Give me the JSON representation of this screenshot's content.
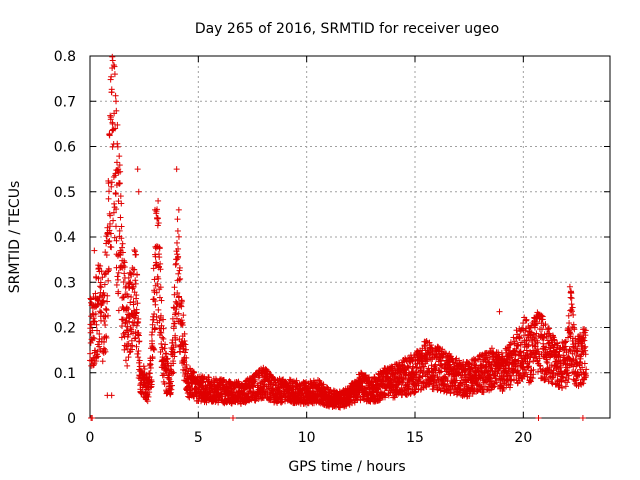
{
  "chart_data": {
    "type": "scatter",
    "title": "Day 265 of 2016, SRMTID for receiver ugeo",
    "xlabel": "GPS time / hours",
    "ylabel": "SRMTID / TECUs",
    "xlim": [
      0,
      24
    ],
    "ylim": [
      0,
      0.8
    ],
    "xticks": [
      "0",
      "5",
      "10",
      "15",
      "20"
    ],
    "yticks": [
      "0",
      "0.1",
      "0.2",
      "0.3",
      "0.4",
      "0.5",
      "0.6",
      "0.7",
      "0.8"
    ],
    "grid": true,
    "marker": "+",
    "series_color": "#e00000",
    "envelope": [
      [
        0.0,
        0.18
      ],
      [
        0.2,
        0.2
      ],
      [
        0.4,
        0.24
      ],
      [
        0.6,
        0.22
      ],
      [
        0.8,
        0.3
      ],
      [
        1.0,
        0.62
      ],
      [
        1.1,
        0.75
      ],
      [
        1.2,
        0.5
      ],
      [
        1.35,
        0.42
      ],
      [
        1.5,
        0.28
      ],
      [
        1.7,
        0.2
      ],
      [
        1.9,
        0.24
      ],
      [
        2.1,
        0.3
      ],
      [
        2.3,
        0.1
      ],
      [
        2.5,
        0.08
      ],
      [
        2.7,
        0.06
      ],
      [
        2.85,
        0.12
      ],
      [
        3.0,
        0.3
      ],
      [
        3.15,
        0.36
      ],
      [
        3.3,
        0.18
      ],
      [
        3.5,
        0.1
      ],
      [
        3.7,
        0.08
      ],
      [
        3.9,
        0.2
      ],
      [
        4.05,
        0.34
      ],
      [
        4.2,
        0.2
      ],
      [
        4.5,
        0.08
      ],
      [
        5.0,
        0.065
      ],
      [
        6.0,
        0.06
      ],
      [
        7.0,
        0.055
      ],
      [
        7.5,
        0.065
      ],
      [
        8.0,
        0.08
      ],
      [
        8.5,
        0.06
      ],
      [
        9.0,
        0.06
      ],
      [
        10.0,
        0.055
      ],
      [
        10.5,
        0.06
      ],
      [
        11.0,
        0.045
      ],
      [
        11.5,
        0.04
      ],
      [
        12.0,
        0.05
      ],
      [
        12.5,
        0.07
      ],
      [
        13.0,
        0.06
      ],
      [
        13.5,
        0.075
      ],
      [
        14.0,
        0.08
      ],
      [
        14.5,
        0.09
      ],
      [
        15.0,
        0.1
      ],
      [
        15.5,
        0.12
      ],
      [
        16.0,
        0.11
      ],
      [
        16.5,
        0.1
      ],
      [
        17.0,
        0.09
      ],
      [
        17.5,
        0.085
      ],
      [
        18.0,
        0.1
      ],
      [
        18.5,
        0.11
      ],
      [
        19.0,
        0.1
      ],
      [
        19.5,
        0.12
      ],
      [
        20.0,
        0.16
      ],
      [
        20.3,
        0.14
      ],
      [
        20.6,
        0.17
      ],
      [
        21.0,
        0.15
      ],
      [
        21.5,
        0.12
      ],
      [
        22.0,
        0.12
      ],
      [
        22.2,
        0.2
      ],
      [
        22.4,
        0.12
      ],
      [
        22.8,
        0.14
      ],
      [
        22.9,
        0.15
      ]
    ],
    "spikes": [
      [
        1.05,
        0.79
      ],
      [
        1.1,
        0.78
      ],
      [
        1.15,
        0.76
      ],
      [
        1.0,
        0.72
      ],
      [
        1.2,
        0.7
      ],
      [
        1.3,
        0.55
      ],
      [
        2.2,
        0.55
      ],
      [
        2.25,
        0.5
      ],
      [
        3.0,
        0.46
      ],
      [
        3.1,
        0.44
      ],
      [
        4.0,
        0.55
      ],
      [
        4.1,
        0.46
      ],
      [
        0.2,
        0.37
      ],
      [
        18.9,
        0.235
      ],
      [
        22.15,
        0.29
      ],
      [
        22.2,
        0.28
      ],
      [
        20.6,
        0.22
      ],
      [
        0.8,
        0.05
      ],
      [
        1.0,
        0.05
      ]
    ],
    "zero_points": [
      0.05,
      0.1,
      6.6,
      20.7,
      22.75
    ]
  }
}
